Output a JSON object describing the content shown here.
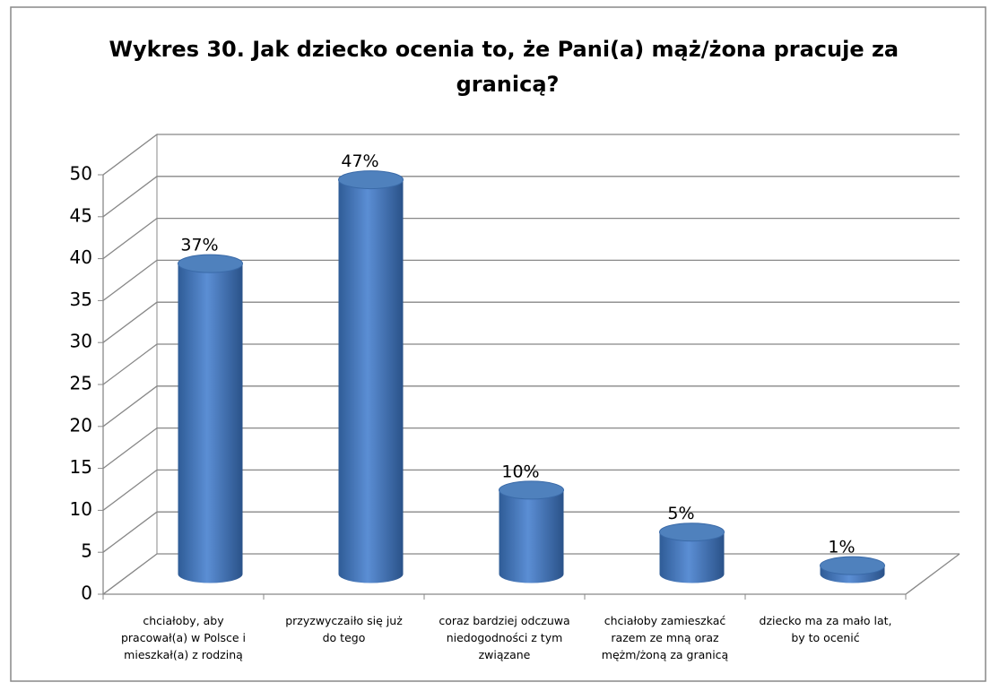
{
  "chart_data": {
    "type": "bar",
    "title": "Wykres  30. Jak dziecko ocenia to, że Pani(a) mąż/żona pracuje za granicą?",
    "categories": [
      "chciałoby, aby pracował(a) w Polsce i mieszkał(a) z rodziną",
      "przyzwyczaiło się już do tego",
      "coraz bardziej odczuwa niedogodności z tym związane",
      "chciałoby zamieszkać razem ze mną oraz mężm/żoną za granicą",
      "dziecko ma za mało lat, by to ocenić"
    ],
    "values": [
      37,
      47,
      10,
      5,
      1
    ],
    "value_labels": [
      "37%",
      "47%",
      "10%",
      "5%",
      "1%"
    ],
    "color": "#4f81bd",
    "ylim": [
      0,
      50
    ],
    "yticks": [
      0,
      5,
      10,
      15,
      20,
      25,
      30,
      35,
      40,
      45,
      50
    ],
    "grid": true
  }
}
